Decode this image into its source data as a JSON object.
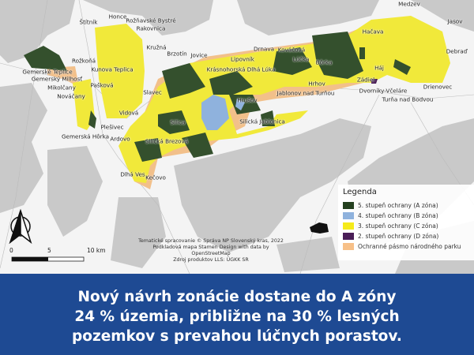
{
  "map": {
    "towns": [
      "Štítník",
      "Honce",
      "Rožňavské Bystré",
      "Rakovnica",
      "Kružná",
      "Brzotín",
      "Jovice",
      "Rožkoňá",
      "Kunova Teplica",
      "Gemerské Teplice",
      "Gemerský Milhosť",
      "Mikolčany",
      "Nováčany",
      "Pašková",
      "Slavec",
      "Vidová",
      "Silica",
      "Plešivec",
      "Gemerská Hôrka",
      "Ardovo",
      "Silická Brezová",
      "Dlhá Ves",
      "Kečovo",
      "Lipovník",
      "Krásnohorská Dlhá Lúka",
      "Drnava",
      "Kováčová",
      "Lúčka",
      "Bôrka",
      "Hačava",
      "Medzev",
      "Jasov",
      "Debraď",
      "Háj",
      "Zádiel",
      "Hrhov",
      "Jablonov nad Turňou",
      "Hrušov",
      "Silická Jablonica",
      "Dvorníky-Včeláre",
      "Turňa nad Bodvou",
      "Drienovec"
    ],
    "colors": {
      "zone_a": "#2f4a2a",
      "zone_b": "#8fb2dd",
      "zone_c": "#f1e93a",
      "zone_d": "#4a1e57",
      "buffer": "#f2c08a",
      "forest": "#c9c9c9"
    },
    "north_arrow_icon": "north-arrow-icon"
  },
  "legend": {
    "title": "Legenda",
    "items": [
      {
        "label": "5. stupeň ochrany (A zóna)",
        "color": "#24401f"
      },
      {
        "label": "4. stupeň ochrany (B zóna)",
        "color": "#8fb2dd"
      },
      {
        "label": "3. stupeň ochrany (C zóna)",
        "color": "#f5ea1a"
      },
      {
        "label": "2. stupeň ochrany (D zóna)",
        "color": "#4a1e57"
      },
      {
        "label": "Ochranné pásmo národného parku",
        "color": "#f7c088"
      }
    ]
  },
  "scale": {
    "ticks": [
      "0",
      "5",
      "10 km"
    ]
  },
  "credits": [
    "Tematické spracovanie © Správa NP Slovenský kras, 2022",
    "Podkladová mapa Stamen Design with data by OpenStreetMap",
    "Zdroj produktov LLS: ÚGKK SR"
  ],
  "banner": {
    "lines": [
      "Nový návrh zonácie dostane do A zóny",
      "24 % územia, približne na 30 % lesných",
      "pozemkov s prevahou lúčnych porastov."
    ]
  }
}
